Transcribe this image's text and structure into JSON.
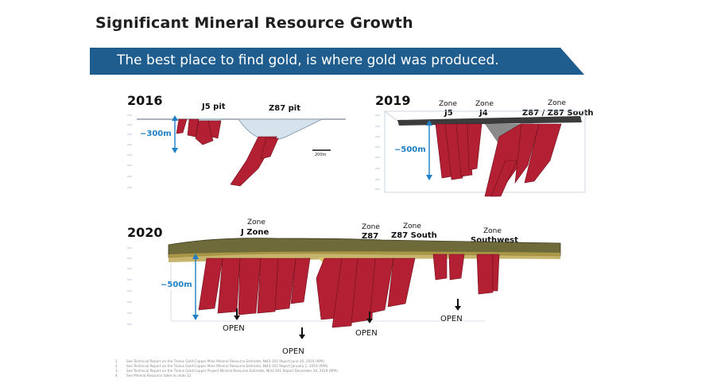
{
  "title": "Significant Mineral Resource Growth",
  "banner": "The best place to find gold, is where gold was produced.",
  "panel_2016": {
    "year": "2016",
    "label_j5": "J5 pit",
    "label_z87": "Z87 pit",
    "depth": "~300m",
    "scale": "200m"
  },
  "panel_2019": {
    "year": "2019",
    "zone_j5_top": "Zone",
    "zone_j5": "J5",
    "zone_j4_top": "Zone",
    "zone_j4": "J4",
    "zone_z87_top": "Zone",
    "zone_z87": "Z87 / Z87 South",
    "depth": "~500m"
  },
  "panel_2020": {
    "year": "2020",
    "zone_j_top": "Zone",
    "zone_j": "J Zone",
    "zone_z87_top": "Zone",
    "zone_z87": "Z87",
    "zone_z87s_top": "Zone",
    "zone_z87s": "Z87 South",
    "zone_sw_top": "Zone",
    "zone_sw": "Southwest",
    "depth": "~500m",
    "open_1": "OPEN",
    "open_2": "OPEN",
    "open_3": "OPEN",
    "open_4": "OPEN"
  },
  "footnotes": [
    {
      "num": "1.",
      "text": "See Technical Report on the Troilus Gold-Copper Mine Mineral Resource Estimate, NI43-101 Report June 30, 2016 (RPA)"
    },
    {
      "num": "2.",
      "text": "See Technical Report on the Troilus Gold-Copper Mine Mineral Resource Estimate, NI43-101 Report January 1, 2019 (RPA)"
    },
    {
      "num": "3.",
      "text": "See Technical Report on the Troilus Gold-Copper Project Mineral Resource Estimate, NI43-101 Report December 30, 2019 (RPA)"
    },
    {
      "num": "4.",
      "text": "See Mineral Resource table on slide 22"
    }
  ],
  "colors": {
    "banner": "#1f5d8e",
    "orebody": "#b32033",
    "depth_arrow": "#1f7fc4",
    "surface": "#6e6a3a"
  }
}
